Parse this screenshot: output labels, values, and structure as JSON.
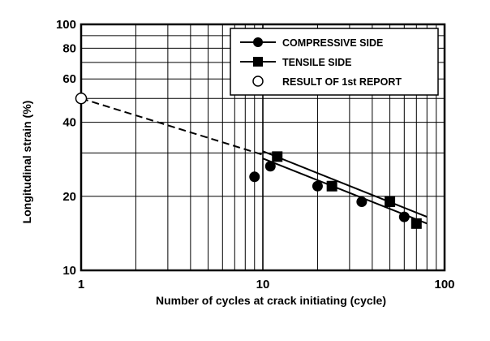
{
  "chart_data": {
    "type": "scatter",
    "xscale": "log",
    "yscale": "log",
    "xlim": [
      1,
      100
    ],
    "ylim": [
      10,
      100
    ],
    "grid": true,
    "xlabel": "Number of cycles at crack initiating (cycle)",
    "ylabel": "Longitudinal strain (%)",
    "x_ticks": [
      "1",
      "10",
      "100"
    ],
    "y_ticks": [
      "10",
      "20",
      "40",
      "60",
      "80",
      "100"
    ],
    "legend_position": "top-right",
    "series": [
      {
        "name": "COMPRESSIVE SIDE",
        "marker": "circle",
        "points": [
          {
            "x": 9,
            "y": 24
          },
          {
            "x": 11,
            "y": 26.5
          },
          {
            "x": 20,
            "y": 22
          },
          {
            "x": 35,
            "y": 19
          },
          {
            "x": 60,
            "y": 16.5
          }
        ],
        "fit_line": [
          {
            "x": 10,
            "y": 28.5
          },
          {
            "x": 80,
            "y": 15.5
          }
        ]
      },
      {
        "name": "TENSILE SIDE",
        "marker": "square",
        "points": [
          {
            "x": 12,
            "y": 29
          },
          {
            "x": 24,
            "y": 22
          },
          {
            "x": 50,
            "y": 19
          },
          {
            "x": 70,
            "y": 15.5
          }
        ],
        "fit_line": [
          {
            "x": 10,
            "y": 30.5
          },
          {
            "x": 80,
            "y": 16.5
          }
        ]
      },
      {
        "name": "RESULT OF 1st REPORT",
        "marker": "open-circle",
        "points": [
          {
            "x": 1,
            "y": 50
          }
        ],
        "extrapolation_line": [
          {
            "x": 1,
            "y": 50
          },
          {
            "x": 10,
            "y": 29.5
          }
        ],
        "line_style": "dashed"
      }
    ]
  }
}
